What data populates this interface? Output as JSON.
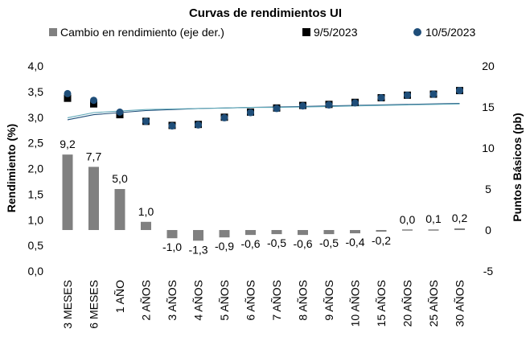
{
  "chart_data": {
    "type": "bar",
    "title": "Curvas de rendimientos UI",
    "categories": [
      "3 MESES",
      "6 MESES",
      "1 AÑO",
      "2 AÑOS",
      "3 AÑOS",
      "4 AÑOS",
      "5 AÑOS",
      "6 AÑOS",
      "7 AÑOS",
      "8 AÑOS",
      "9 AÑOS",
      "10 AÑOS",
      "15 AÑOS",
      "20 AÑOS",
      "25 AÑOS",
      "30 AÑOS"
    ],
    "ylabel": "Rendimiento (%)",
    "y2label": "Puntos Básicos (pb)",
    "ylim": [
      0.0,
      4.0
    ],
    "y2lim": [
      -5,
      20
    ],
    "yticks": [
      "0,0",
      "0,5",
      "1,0",
      "1,5",
      "2,0",
      "2,5",
      "3,0",
      "3,5",
      "4,0"
    ],
    "y2ticks": [
      "-5",
      "0",
      "5",
      "10",
      "15",
      "20"
    ],
    "legend_position": "top",
    "grid": false,
    "series": [
      {
        "name": "Cambio en rendimiento (eje der.)",
        "kind": "bar",
        "axis": "right",
        "color": "#808080",
        "values": [
          9.2,
          7.7,
          5.0,
          1.0,
          -1.0,
          -1.3,
          -0.9,
          -0.6,
          -0.5,
          -0.6,
          -0.5,
          -0.4,
          -0.2,
          0.0,
          0.1,
          0.2
        ],
        "labels": [
          "9,2",
          "7,7",
          "5,0",
          "1,0",
          "-1,0",
          "-1,3",
          "-0,9",
          "-0,6",
          "-0,5",
          "-0,6",
          "-0,5",
          "-0,4",
          "-0,2",
          "0,0",
          "0,1",
          "0,2"
        ]
      },
      {
        "name": "9/5/2023",
        "kind": "scatter",
        "marker": "square",
        "axis": "left",
        "color": "#000000",
        "values": [
          3.37,
          3.26,
          3.05,
          2.92,
          2.84,
          2.86,
          3.0,
          3.1,
          3.18,
          3.23,
          3.25,
          3.29,
          3.38,
          3.43,
          3.45,
          3.52
        ]
      },
      {
        "name": "10/5/2023",
        "kind": "scatter",
        "marker": "circle",
        "axis": "left",
        "color": "#1f4e79",
        "values": [
          3.46,
          3.33,
          3.1,
          2.92,
          2.83,
          2.85,
          2.99,
          3.09,
          3.17,
          3.22,
          3.24,
          3.28,
          3.38,
          3.43,
          3.45,
          3.52
        ]
      }
    ],
    "trendlines": [
      {
        "kind": "line",
        "color": "#1f4e79",
        "values": [
          2.95,
          3.05,
          3.09,
          3.13,
          3.15,
          3.17,
          3.18,
          3.19,
          3.2,
          3.21,
          3.22,
          3.23,
          3.24,
          3.25,
          3.26,
          3.27
        ]
      },
      {
        "kind": "line",
        "color": "#5fa8b8",
        "values": [
          2.99,
          3.09,
          3.12,
          3.15,
          3.16,
          3.17,
          3.18,
          3.19,
          3.19,
          3.2,
          3.21,
          3.22,
          3.23,
          3.24,
          3.25,
          3.26
        ]
      }
    ]
  }
}
